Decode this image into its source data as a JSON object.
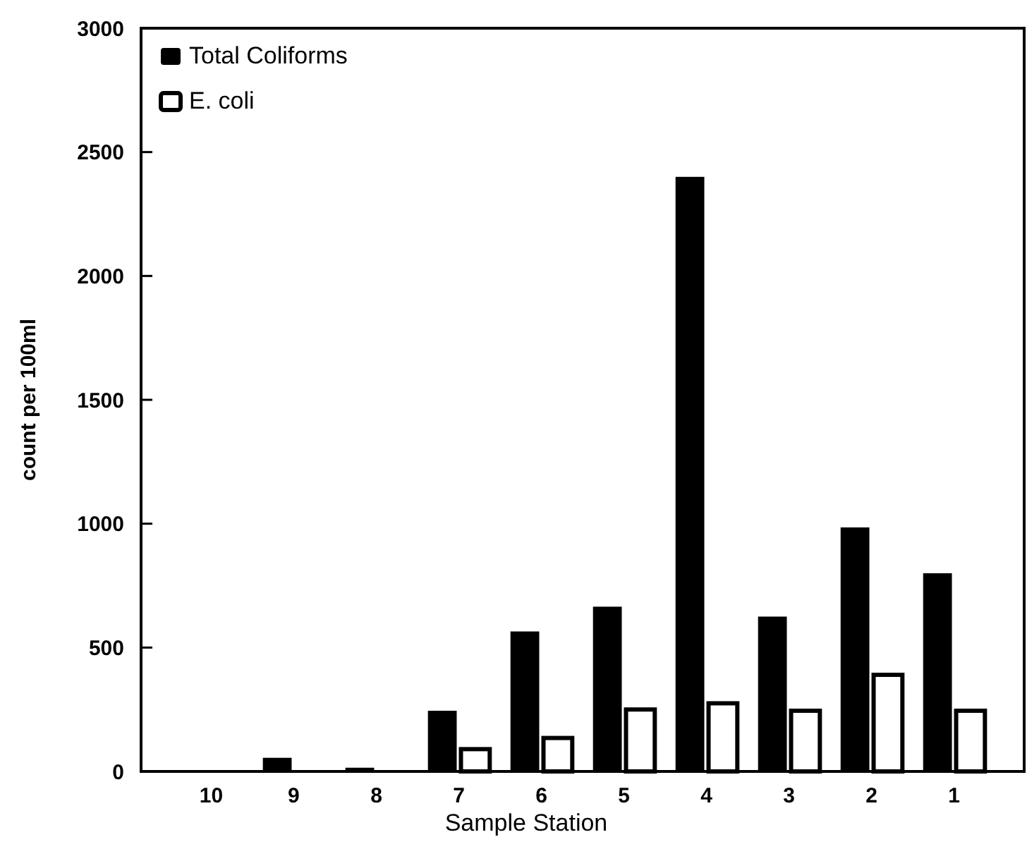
{
  "chart_data": {
    "type": "bar",
    "xlabel": "Sample Station",
    "ylabel": "count per 100ml",
    "categories": [
      "10",
      "9",
      "8",
      "7",
      "6",
      "5",
      "4",
      "3",
      "2",
      "1"
    ],
    "series": [
      {
        "name": "Total Coliforms",
        "color": "#000000",
        "values": [
          5,
          55,
          15,
          245,
          565,
          665,
          2400,
          625,
          985,
          800
        ]
      },
      {
        "name": "E. coli",
        "color": "#ffffff",
        "values": [
          3,
          3,
          5,
          90,
          135,
          250,
          275,
          245,
          390,
          245
        ]
      }
    ],
    "ylim": [
      0,
      3000
    ],
    "yticks": [
      0,
      500,
      1000,
      1500,
      2000,
      2500,
      3000
    ],
    "legend": "top left"
  }
}
